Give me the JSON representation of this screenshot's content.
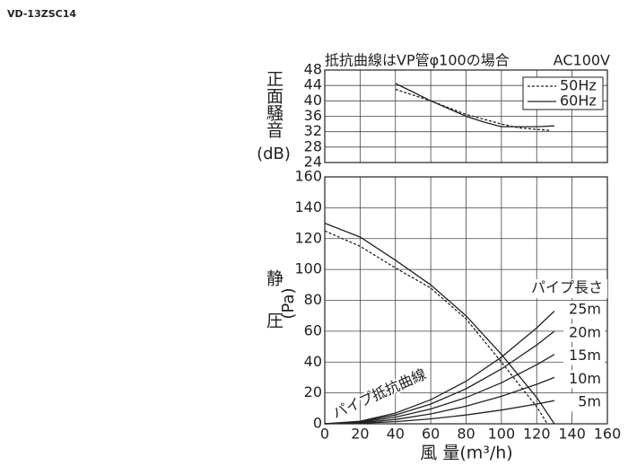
{
  "model": "VD-13ZSC14",
  "chart_data": [
    {
      "type": "line",
      "title": "抵抗曲線はVP管φ100の場合",
      "note": "AC100V",
      "ylabel": "正面騒音",
      "yunit": "(dB)",
      "xlim": [
        0,
        160
      ],
      "ylim": [
        24,
        48
      ],
      "yticks": [
        24,
        28,
        32,
        36,
        40,
        44,
        48
      ],
      "grid": true,
      "legend": "top-right",
      "series": [
        {
          "name": "50Hz",
          "color": "#222",
          "style": "dashed",
          "x": [
            40,
            60,
            80,
            100,
            110,
            120,
            128
          ],
          "values": [
            43,
            40,
            36.5,
            34,
            33,
            32.6,
            32.3
          ]
        },
        {
          "name": "60Hz",
          "color": "#222",
          "style": "solid",
          "x": [
            40,
            50,
            60,
            70,
            80,
            90,
            100,
            110,
            120,
            130
          ],
          "values": [
            44.5,
            42.3,
            40,
            38,
            36,
            34.5,
            33.3,
            33.3,
            33.3,
            33.5
          ]
        }
      ]
    },
    {
      "type": "line",
      "ylabel": "静圧",
      "yunit": "(Pa)",
      "xlabel": "風 量(m³/h)",
      "annotation": "パイプ抵抗曲線",
      "legend_title": "パイプ長さ",
      "xlim": [
        0,
        160
      ],
      "xticks": [
        0,
        20,
        40,
        60,
        80,
        100,
        120,
        140,
        160
      ],
      "ylim": [
        0,
        160
      ],
      "yticks": [
        0,
        20,
        40,
        60,
        80,
        100,
        120,
        140,
        160
      ],
      "grid": true,
      "fan_curves": [
        {
          "color": "#222",
          "style": "solid",
          "x": [
            0,
            20,
            40,
            60,
            80,
            100,
            120,
            130
          ],
          "values": [
            130,
            121,
            106,
            90,
            70,
            45,
            17,
            0
          ]
        },
        {
          "color": "#222",
          "style": "dashed",
          "x": [
            0,
            20,
            40,
            60,
            80,
            100,
            120,
            126
          ],
          "values": [
            125,
            115,
            101,
            88,
            68,
            40,
            11,
            0
          ]
        }
      ],
      "series": [
        {
          "name": "25m",
          "color": "#222",
          "x": [
            0,
            20,
            40,
            60,
            80,
            100,
            120,
            130
          ],
          "values": [
            0,
            1.7,
            6.9,
            15.6,
            27.6,
            43.2,
            62.2,
            73
          ]
        },
        {
          "name": "20m",
          "color": "#222",
          "x": [
            0,
            20,
            40,
            60,
            80,
            100,
            120,
            130
          ],
          "values": [
            0,
            1.4,
            5.7,
            12.8,
            22.7,
            35.5,
            51.1,
            60
          ]
        },
        {
          "name": "15m",
          "color": "#222",
          "x": [
            0,
            20,
            40,
            60,
            80,
            100,
            120,
            130
          ],
          "values": [
            0,
            1.1,
            4.3,
            9.6,
            17,
            26.6,
            38.3,
            45
          ]
        },
        {
          "name": "10m",
          "color": "#222",
          "x": [
            0,
            20,
            40,
            60,
            80,
            100,
            120,
            130
          ],
          "values": [
            0,
            0.7,
            2.8,
            6.4,
            11.4,
            17.8,
            25.6,
            30
          ]
        },
        {
          "name": "5m",
          "color": "#222",
          "x": [
            0,
            20,
            40,
            60,
            80,
            100,
            120,
            130
          ],
          "values": [
            0,
            0.4,
            1.4,
            3.2,
            5.7,
            8.9,
            12.8,
            15
          ]
        }
      ]
    }
  ]
}
